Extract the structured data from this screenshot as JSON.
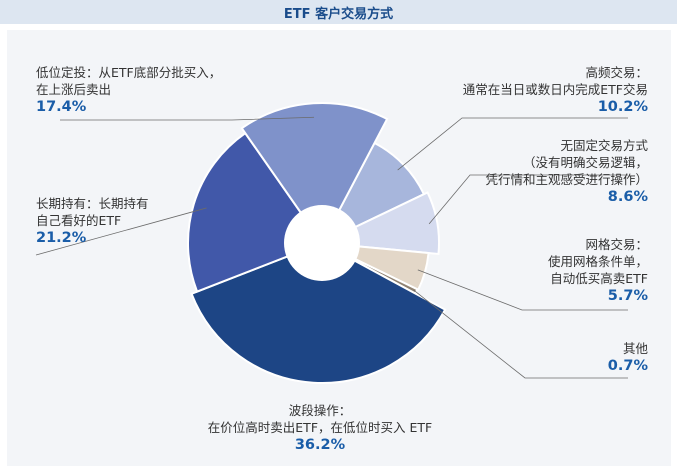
{
  "title": "ETF 客户交易方式",
  "colors": {
    "header_bg": "#dde6f1",
    "title": "#1a4c8b",
    "percent": "#1a5da8",
    "panel_bg": "#f3f5f8"
  },
  "chart_data": {
    "type": "pie",
    "title": "ETF 客户交易方式",
    "donut": true,
    "slices": [
      {
        "key": "high_freq",
        "label_lines": [
          "高频交易：",
          "通常在当日或数日内完成ETF交易"
        ],
        "value": 10.2,
        "pct_label": "10.2%",
        "color": "#a7b6dc"
      },
      {
        "key": "no_fixed",
        "label_lines": [
          "无固定交易方式",
          "（没有明确交易逻辑，",
          "凭行情和主观感受进行操作）"
        ],
        "value": 8.6,
        "pct_label": "8.6%",
        "color": "#d5dbef"
      },
      {
        "key": "grid",
        "label_lines": [
          "网格交易：",
          "使用网格条件单，",
          "自动低买高卖ETF"
        ],
        "value": 5.7,
        "pct_label": "5.7%",
        "color": "#e3d7c8"
      },
      {
        "key": "other",
        "label_lines": [
          "其他"
        ],
        "value": 0.7,
        "pct_label": "0.7%",
        "color": "#8f8272"
      },
      {
        "key": "swing",
        "label_lines": [
          "波段操作：",
          "在价位高时卖出ETF，在低位时买入 ETF"
        ],
        "value": 36.2,
        "pct_label": "36.2%",
        "color": "#1d4585"
      },
      {
        "key": "long_term",
        "label_lines": [
          "长期持有：长期持有",
          "自己看好的ETF"
        ],
        "value": 21.2,
        "pct_label": "21.2%",
        "color": "#4158a9"
      },
      {
        "key": "low_entry",
        "label_lines": [
          "低位定投：从ETF底部分批买入，",
          "在上涨后卖出"
        ],
        "value": 17.4,
        "pct_label": "17.4%",
        "color": "#7f92ca"
      }
    ]
  }
}
